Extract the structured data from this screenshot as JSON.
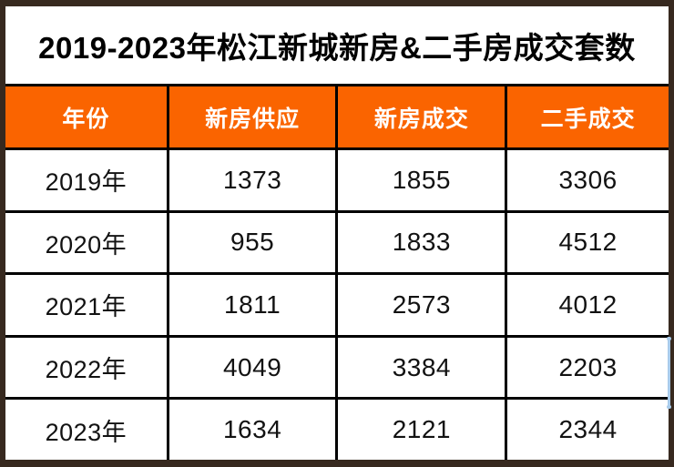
{
  "page": {
    "title": "2019-2023年松江新城新房&二手房成交套数"
  },
  "table": {
    "columns": [
      "年份",
      "新房供应",
      "新房成交",
      "二手成交"
    ],
    "rows": [
      [
        "2019年",
        "1373",
        "1855",
        "3306"
      ],
      [
        "2020年",
        "955",
        "1833",
        "4512"
      ],
      [
        "2021年",
        "1811",
        "2573",
        "4012"
      ],
      [
        "2022年",
        "4049",
        "3384",
        "2203"
      ],
      [
        "2023年",
        "1634",
        "2121",
        "2344"
      ]
    ]
  },
  "colors": {
    "header_bg": "#fa6400",
    "grid_line": "#000000",
    "outer_border": "#37291f",
    "header_text": "#ffffff",
    "body_text": "#121212",
    "cursor_artifact": "#a9cbea"
  },
  "chart_data": {
    "type": "table",
    "title": "2019-2023年松江新城新房&二手房成交套数",
    "columns": [
      "年份",
      "新房供应",
      "新房成交",
      "二手成交"
    ],
    "categories": [
      "2019年",
      "2020年",
      "2021年",
      "2022年",
      "2023年"
    ],
    "series": [
      {
        "name": "新房供应",
        "values": [
          1373,
          955,
          1811,
          4049,
          1634
        ]
      },
      {
        "name": "新房成交",
        "values": [
          1855,
          1833,
          2573,
          3384,
          2121
        ]
      },
      {
        "name": "二手成交",
        "values": [
          3306,
          4512,
          4012,
          2203,
          2344
        ]
      }
    ],
    "layout": {
      "header_style": "orange-band",
      "gridlines": true
    }
  }
}
